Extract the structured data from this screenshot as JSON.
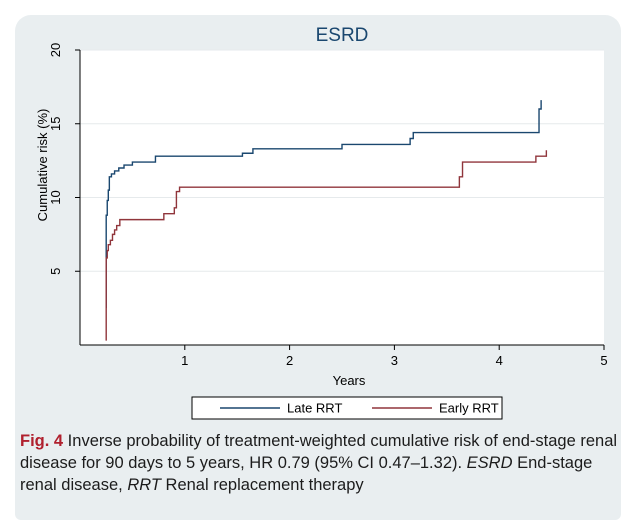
{
  "chart_data": {
    "type": "line",
    "title": "ESRD",
    "xlabel": "Years",
    "ylabel": "Cumulative risk (%)",
    "xlim": [
      0,
      5
    ],
    "ylim": [
      0,
      20
    ],
    "xticks": [
      1,
      2,
      3,
      4,
      5
    ],
    "yticks": [
      5,
      10,
      15,
      20
    ],
    "grid": "horizontal",
    "legend_position": "bottom",
    "series": [
      {
        "name": "Late RRT",
        "color": "#1a476f",
        "x": [
          0.25,
          0.25,
          0.26,
          0.27,
          0.28,
          0.3,
          0.33,
          0.37,
          0.42,
          0.5,
          0.72,
          1.55,
          1.65,
          2.5,
          3.15,
          3.18,
          4.35,
          4.38,
          4.4
        ],
        "y": [
          2.5,
          8.8,
          9.8,
          10.5,
          11.4,
          11.6,
          11.8,
          12.0,
          12.2,
          12.4,
          12.8,
          13.0,
          13.3,
          13.6,
          14.0,
          14.4,
          14.4,
          16.0,
          16.6
        ]
      },
      {
        "name": "Early RRT",
        "color": "#90353b",
        "x": [
          0.25,
          0.25,
          0.26,
          0.27,
          0.29,
          0.31,
          0.33,
          0.35,
          0.38,
          0.72,
          0.8,
          0.9,
          0.92,
          0.95,
          3.58,
          3.62,
          3.65,
          4.25,
          4.35,
          4.45
        ],
        "y": [
          0.3,
          5.9,
          6.4,
          6.8,
          7.1,
          7.5,
          7.8,
          8.1,
          8.5,
          8.5,
          8.9,
          9.3,
          10.4,
          10.7,
          10.7,
          11.4,
          12.4,
          12.4,
          12.8,
          13.2
        ]
      }
    ]
  },
  "caption": {
    "fig_label": "Fig. 4",
    "text1": " Inverse probability of treatment-weighted cumulative risk of end-stage renal disease for 90 days to 5 years, HR 0.79 (95% CI 0.47–1.32). ",
    "abbr1": "ESRD",
    "text2": " End-stage renal disease, ",
    "abbr2": "RRT",
    "text3": " Renal replacement therapy"
  }
}
